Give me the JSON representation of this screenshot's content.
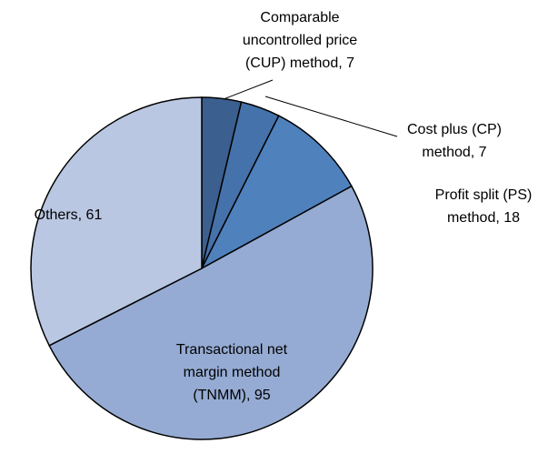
{
  "chart_data": {
    "type": "pie",
    "values": [
      7,
      7,
      18,
      95,
      61
    ],
    "value_labels": [
      [
        "Comparable",
        "uncontrolled price",
        "(CUP) method, 7"
      ],
      [
        "Cost plus (CP)",
        "method, 7"
      ],
      [
        "Profit split (PS)",
        "method, 18"
      ],
      [
        "Transactional net",
        "margin method",
        "(TNMM), 95"
      ],
      [
        "Others, 61"
      ]
    ],
    "colors": [
      "#3b5f8f",
      "#4572aa",
      "#4f81bd",
      "#95abd3",
      "#b9c7e2"
    ]
  }
}
